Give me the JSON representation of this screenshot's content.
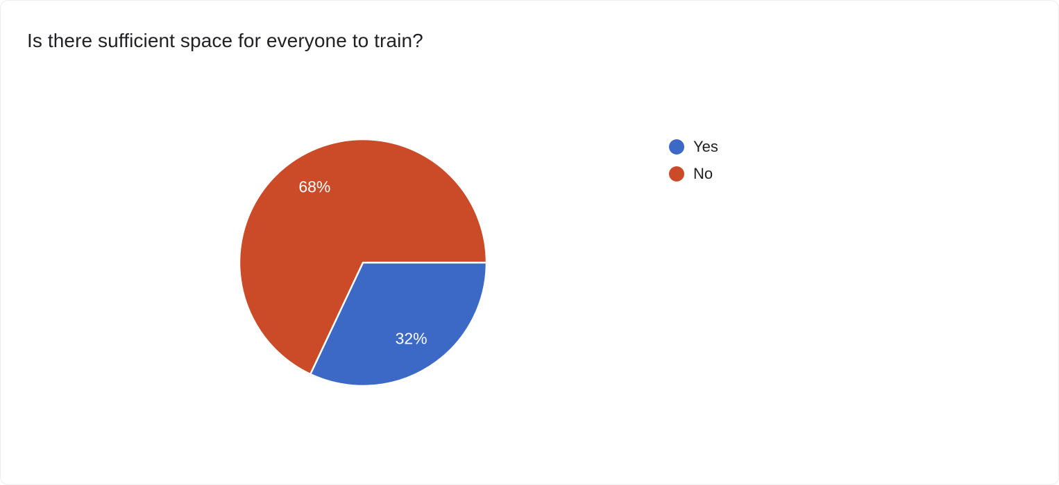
{
  "question": {
    "title": "Is there sufficient space for everyone to train?"
  },
  "legend": {
    "position": "right",
    "items": [
      {
        "label": "Yes",
        "color": "#3C68C6"
      },
      {
        "label": "No",
        "color": "#CB4A28"
      }
    ]
  },
  "chart_data": {
    "type": "pie",
    "title": "Is there sufficient space for everyone to train?",
    "categories": [
      "Yes",
      "No"
    ],
    "values": [
      32,
      68
    ],
    "labels": [
      "32%",
      "68%"
    ],
    "colors": [
      "#3C68C6",
      "#CB4A28"
    ],
    "unit": "%",
    "start_angle_deg": 0,
    "direction": "clockwise",
    "slice_border_color": "#ffffff",
    "slice_border_width": 2.5,
    "label_color": "#ffffff",
    "label_radius_ratio": 0.73,
    "legend_position": "right",
    "background": "#ffffff"
  }
}
